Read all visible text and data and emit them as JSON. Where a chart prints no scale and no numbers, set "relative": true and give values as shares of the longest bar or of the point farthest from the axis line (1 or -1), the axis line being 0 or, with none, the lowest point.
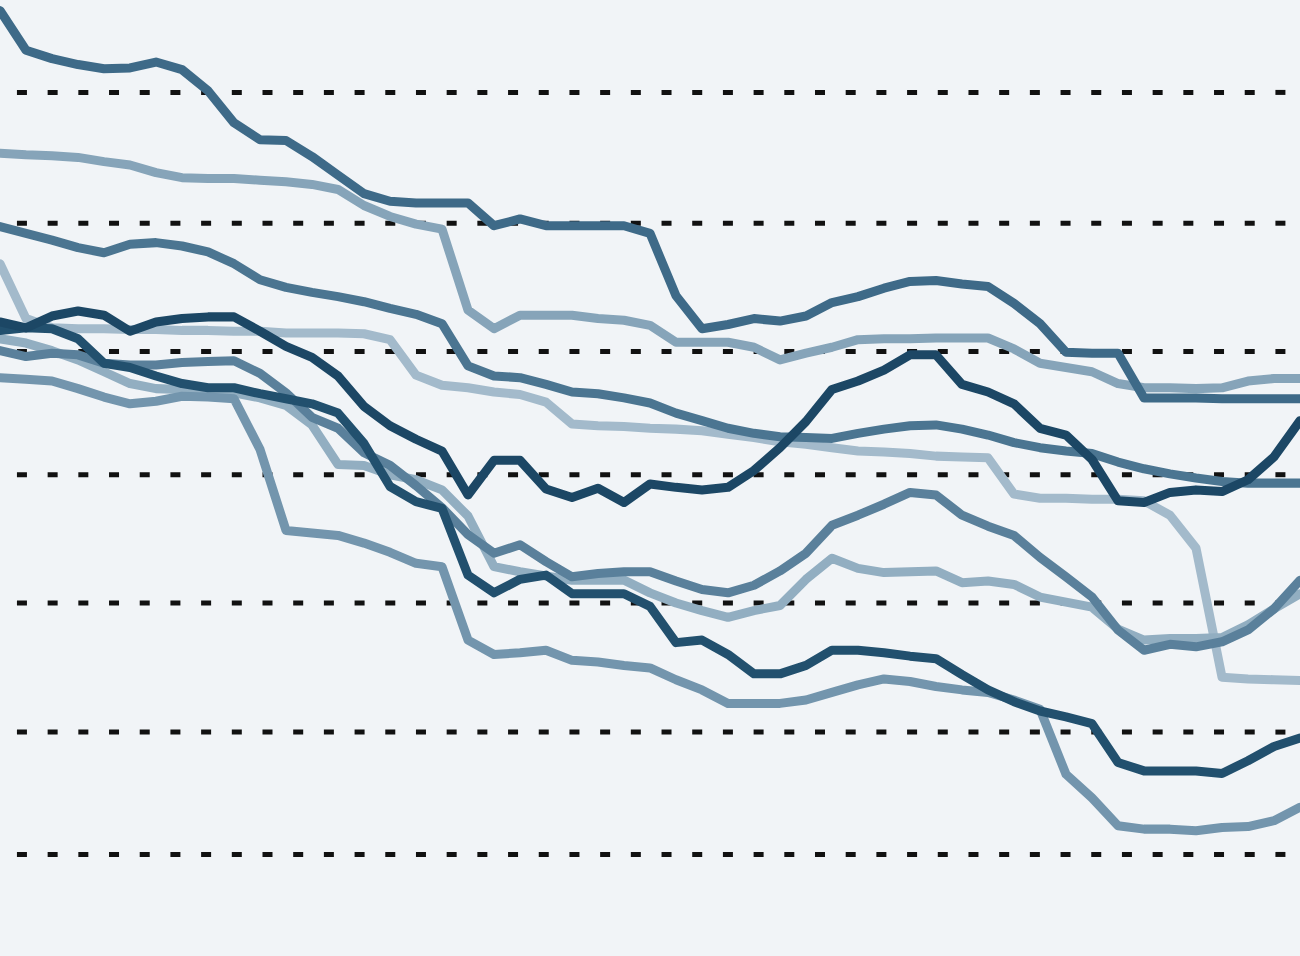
{
  "chart_data": {
    "type": "line",
    "relative": true,
    "categories": [
      null,
      null,
      null,
      null,
      null,
      null,
      null,
      null,
      null,
      null,
      null,
      null,
      null,
      null,
      null,
      null,
      null,
      null,
      null,
      null,
      null,
      null,
      null,
      null,
      null,
      null,
      null,
      null,
      null,
      null,
      null,
      null,
      null,
      null,
      null,
      null,
      null,
      null,
      null,
      null,
      null,
      null,
      null,
      null,
      null,
      null,
      null,
      null,
      null,
      null,
      null
    ],
    "ref_lines": [
      {
        "axis": "y",
        "value": 0,
        "line_style": "dotted",
        "color": "#111111"
      },
      {
        "axis": "y",
        "value": 0.145,
        "line_style": "dotted",
        "color": "#111111"
      },
      {
        "axis": "y",
        "value": 0.298,
        "line_style": "dotted",
        "color": "#111111"
      },
      {
        "axis": "y",
        "value": 0.45,
        "line_style": "dotted",
        "color": "#111111"
      },
      {
        "axis": "y",
        "value": 0.596,
        "line_style": "dotted",
        "color": "#111111"
      },
      {
        "axis": "y",
        "value": 0.748,
        "line_style": "dotted",
        "color": "#111111"
      },
      {
        "axis": "y",
        "value": 0.903,
        "line_style": "dotted",
        "color": "#111111"
      }
    ],
    "series": [
      {
        "color": "#a3bacb",
        "values": [
          0.7,
          0.635,
          0.624,
          0.623,
          0.623,
          0.622,
          0.622,
          0.621,
          0.621,
          0.62,
          0.62,
          0.618,
          0.618,
          0.618,
          0.617,
          0.61,
          0.568,
          0.556,
          0.553,
          0.548,
          0.545,
          0.536,
          0.51,
          0.508,
          0.507,
          0.505,
          0.504,
          0.502,
          0.498,
          0.494,
          0.489,
          0.486,
          0.482,
          0.478,
          0.477,
          0.475,
          0.472,
          0.471,
          0.47,
          0.427,
          0.422,
          0.422,
          0.421,
          0.421,
          0.419,
          0.402,
          0.363,
          0.21,
          0.208,
          0.207,
          0.206
        ]
      },
      {
        "color": "#86a4b9",
        "values": [
          0.831,
          0.829,
          0.828,
          0.826,
          0.821,
          0.817,
          0.808,
          0.802,
          0.801,
          0.801,
          0.799,
          0.797,
          0.794,
          0.788,
          0.769,
          0.756,
          0.747,
          0.741,
          0.645,
          0.623,
          0.639,
          0.639,
          0.639,
          0.635,
          0.633,
          0.627,
          0.607,
          0.607,
          0.607,
          0.601,
          0.586,
          0.594,
          0.601,
          0.61,
          0.611,
          0.611,
          0.612,
          0.612,
          0.612,
          0.599,
          0.582,
          0.577,
          0.572,
          0.558,
          0.553,
          0.553,
          0.552,
          0.553,
          0.561,
          0.564,
          0.564
        ]
      },
      {
        "color": "#92aec1",
        "values": [
          0.611,
          0.606,
          0.597,
          0.586,
          0.572,
          0.558,
          0.552,
          0.551,
          0.55,
          0.547,
          0.541,
          0.532,
          0.509,
          0.462,
          0.461,
          0.45,
          0.444,
          0.432,
          0.401,
          0.341,
          0.335,
          0.33,
          0.325,
          0.325,
          0.325,
          0.31,
          0.298,
          0.289,
          0.281,
          0.289,
          0.295,
          0.326,
          0.351,
          0.339,
          0.334,
          0.335,
          0.336,
          0.322,
          0.324,
          0.32,
          0.305,
          0.299,
          0.293,
          0.267,
          0.254,
          0.256,
          0.256,
          0.257,
          0.272,
          0.291,
          0.309
        ]
      },
      {
        "color": "#7395ad",
        "values": [
          0.565,
          0.563,
          0.561,
          0.552,
          0.542,
          0.534,
          0.537,
          0.543,
          0.542,
          0.54,
          0.48,
          0.384,
          0.381,
          0.378,
          0.369,
          0.358,
          0.345,
          0.341,
          0.254,
          0.237,
          0.239,
          0.242,
          0.23,
          0.228,
          0.224,
          0.221,
          0.207,
          0.195,
          0.179,
          0.179,
          0.179,
          0.183,
          0.192,
          0.201,
          0.208,
          0.205,
          0.199,
          0.195,
          0.192,
          0.183,
          0.172,
          0.095,
          0.067,
          0.034,
          0.03,
          0.03,
          0.028,
          0.032,
          0.033,
          0.04,
          0.056
        ]
      },
      {
        "color": "#3e6a88",
        "values": [
          1.0,
          0.953,
          0.943,
          0.936,
          0.931,
          0.932,
          0.939,
          0.93,
          0.905,
          0.867,
          0.847,
          0.846,
          0.827,
          0.805,
          0.783,
          0.774,
          0.772,
          0.772,
          0.772,
          0.745,
          0.753,
          0.745,
          0.745,
          0.745,
          0.745,
          0.736,
          0.662,
          0.623,
          0.628,
          0.635,
          0.632,
          0.638,
          0.654,
          0.661,
          0.671,
          0.679,
          0.68,
          0.676,
          0.673,
          0.653,
          0.629,
          0.595,
          0.594,
          0.594,
          0.541,
          0.541,
          0.541,
          0.54,
          0.54,
          0.54,
          0.54
        ]
      },
      {
        "color": "#4b7591",
        "values": [
          0.744,
          0.736,
          0.728,
          0.719,
          0.713,
          0.723,
          0.725,
          0.721,
          0.714,
          0.7,
          0.681,
          0.672,
          0.666,
          0.661,
          0.655,
          0.647,
          0.64,
          0.629,
          0.579,
          0.567,
          0.565,
          0.557,
          0.548,
          0.546,
          0.541,
          0.535,
          0.523,
          0.514,
          0.505,
          0.499,
          0.495,
          0.494,
          0.493,
          0.499,
          0.504,
          0.508,
          0.509,
          0.504,
          0.497,
          0.488,
          0.482,
          0.478,
          0.475,
          0.465,
          0.457,
          0.451,
          0.446,
          0.442,
          0.44,
          0.44,
          0.44
        ]
      },
      {
        "color": "#5a809b",
        "values": [
          0.597,
          0.59,
          0.594,
          0.592,
          0.582,
          0.58,
          0.58,
          0.583,
          0.584,
          0.585,
          0.57,
          0.547,
          0.518,
          0.505,
          0.476,
          0.461,
          0.437,
          0.411,
          0.379,
          0.357,
          0.367,
          0.347,
          0.329,
          0.333,
          0.335,
          0.335,
          0.324,
          0.314,
          0.31,
          0.319,
          0.336,
          0.357,
          0.39,
          0.402,
          0.415,
          0.429,
          0.426,
          0.402,
          0.389,
          0.378,
          0.352,
          0.329,
          0.305,
          0.266,
          0.242,
          0.249,
          0.246,
          0.252,
          0.266,
          0.291,
          0.325
        ]
      },
      {
        "color": "#22506e",
        "values": [
          0.621,
          0.624,
          0.623,
          0.611,
          0.582,
          0.577,
          0.567,
          0.558,
          0.553,
          0.553,
          0.546,
          0.54,
          0.534,
          0.523,
          0.487,
          0.436,
          0.418,
          0.41,
          0.331,
          0.31,
          0.326,
          0.331,
          0.309,
          0.309,
          0.309,
          0.294,
          0.251,
          0.254,
          0.237,
          0.214,
          0.214,
          0.224,
          0.242,
          0.242,
          0.239,
          0.235,
          0.232,
          0.213,
          0.195,
          0.181,
          0.17,
          0.163,
          0.155,
          0.109,
          0.099,
          0.099,
          0.099,
          0.096,
          0.111,
          0.128,
          0.138
        ]
      },
      {
        "color": "#1c4765",
        "values": [
          0.631,
          0.624,
          0.638,
          0.644,
          0.639,
          0.62,
          0.631,
          0.635,
          0.637,
          0.637,
          0.62,
          0.602,
          0.589,
          0.567,
          0.531,
          0.508,
          0.492,
          0.478,
          0.426,
          0.467,
          0.467,
          0.433,
          0.423,
          0.434,
          0.417,
          0.439,
          0.435,
          0.432,
          0.435,
          0.455,
          0.482,
          0.513,
          0.551,
          0.561,
          0.574,
          0.592,
          0.592,
          0.557,
          0.548,
          0.534,
          0.505,
          0.497,
          0.468,
          0.419,
          0.417,
          0.429,
          0.432,
          0.43,
          0.444,
          0.471,
          0.514
        ]
      }
    ]
  }
}
